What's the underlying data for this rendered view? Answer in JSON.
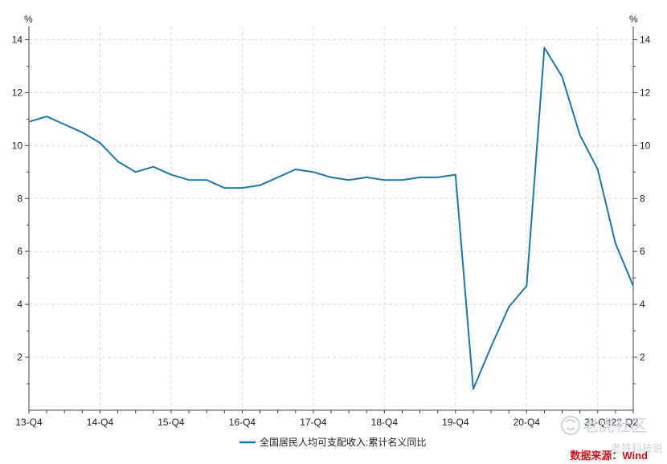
{
  "chart_data": {
    "type": "line",
    "title": "",
    "xlabel": "",
    "ylabel_left": "%",
    "ylabel_right": "%",
    "ylim": [
      0,
      14.5
    ],
    "yticks": [
      2,
      4,
      6,
      8,
      10,
      12,
      14
    ],
    "grid": true,
    "legend_position": "bottom-center",
    "line_color": "#1f77a4",
    "series": [
      {
        "name": "全国居民人均可支配收入:累计名义同比",
        "values": [
          10.9,
          11.1,
          10.8,
          10.5,
          10.1,
          9.4,
          9.0,
          9.2,
          8.9,
          8.7,
          8.7,
          8.4,
          8.4,
          8.5,
          8.8,
          9.1,
          9.0,
          8.8,
          8.7,
          8.8,
          8.7,
          8.7,
          8.8,
          8.8,
          8.9,
          0.8,
          2.4,
          3.9,
          4.7,
          13.7,
          12.6,
          10.4,
          9.1,
          6.3,
          4.7
        ]
      }
    ],
    "x_tick_labels": [
      {
        "index": 0,
        "label": "13-Q4"
      },
      {
        "index": 4,
        "label": "14-Q4"
      },
      {
        "index": 8,
        "label": "15-Q4"
      },
      {
        "index": 12,
        "label": "16-Q4"
      },
      {
        "index": 16,
        "label": "17-Q4"
      },
      {
        "index": 20,
        "label": "18-Q4"
      },
      {
        "index": 24,
        "label": "19-Q4"
      },
      {
        "index": 28,
        "label": "20-Q4"
      },
      {
        "index": 32,
        "label": "21-Q4"
      },
      {
        "index": 34,
        "label": "22-Q2"
      }
    ]
  },
  "source": "数据来源：Wind",
  "watermark": {
    "line1": "老虎社区",
    "line2": "老铁科技说"
  }
}
